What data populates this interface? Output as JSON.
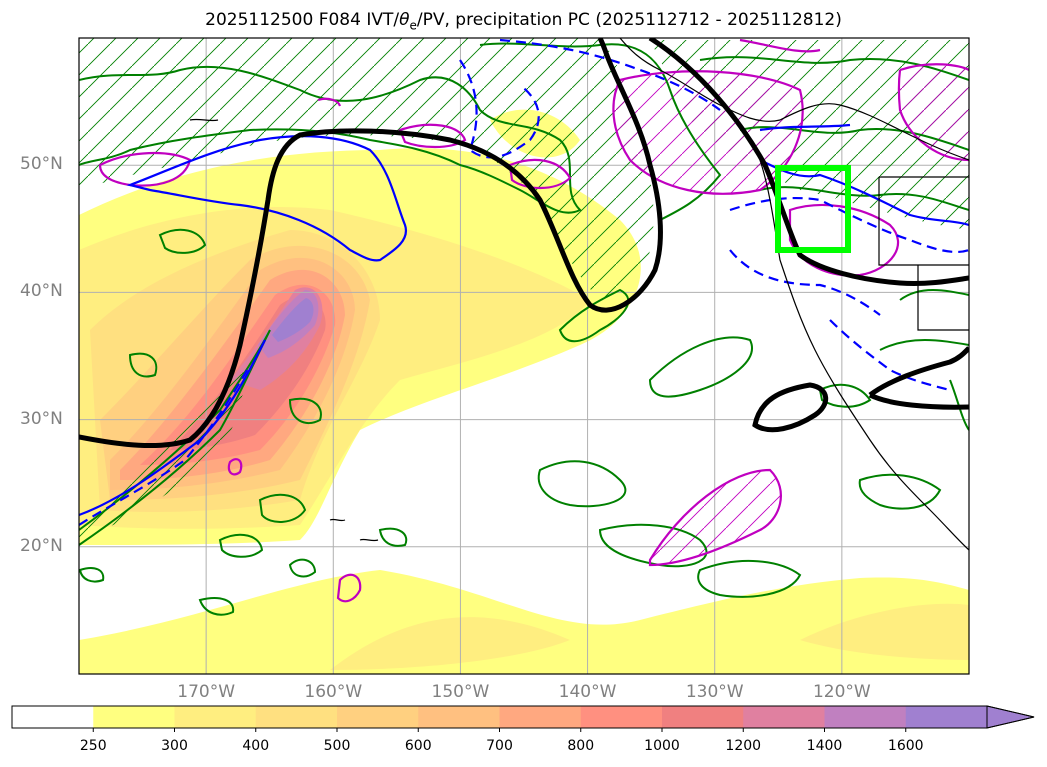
{
  "title": {
    "prefix": "2025112500 F084 IVT/",
    "theta": "θ",
    "theta_sub": "e",
    "suffix": "/PV, precipitation PC (2025112712 - 2025112812)"
  },
  "axes": {
    "lat_labels": [
      "50°N",
      "40°N",
      "30°N",
      "20°N"
    ],
    "lat_values": [
      50,
      40,
      30,
      20
    ],
    "lon_labels": [
      "170°W",
      "160°W",
      "150°W",
      "140°W",
      "130°W",
      "120°W"
    ],
    "lon_values": [
      -170,
      -160,
      -150,
      -140,
      -130,
      -120
    ],
    "lon_range": [
      -180,
      -110
    ],
    "lat_range": [
      10,
      60
    ],
    "grid": true
  },
  "colorbar": {
    "levels": [
      "250",
      "300",
      "400",
      "500",
      "600",
      "700",
      "800",
      "1000",
      "1200",
      "1400",
      "1600"
    ],
    "colors": [
      "#ffff80",
      "#ffee80",
      "#ffe080",
      "#ffd080",
      "#ffc080",
      "#ffa880",
      "#ff9080",
      "#f08080",
      "#e080a0",
      "#c080c0",
      "#a080d0"
    ],
    "extend": "max"
  },
  "highlight_box": {
    "lon": [
      -125,
      -119.5
    ],
    "lat": [
      43,
      50
    ],
    "color": "#00ff00"
  },
  "colors": {
    "pv_contour": "#000000",
    "theta_solid": "#0000ff",
    "precip_green": "#008000",
    "precip_magenta": "#c000c0",
    "coast": "#000000"
  }
}
